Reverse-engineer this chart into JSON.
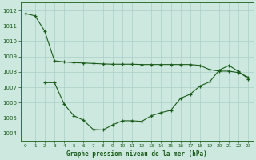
{
  "background_color": "#cce8df",
  "grid_color": "#aacfc7",
  "line_color": "#1a5c1a",
  "title": "Graphe pression niveau de la mer (hPa)",
  "ylim": [
    1003.5,
    1012.5
  ],
  "yticks": [
    1004,
    1005,
    1006,
    1007,
    1008,
    1009,
    1010,
    1011,
    1012
  ],
  "series_A_x": [
    0,
    1,
    2,
    3,
    4,
    5,
    6,
    7,
    8,
    9,
    10,
    11,
    12,
    13,
    14,
    15,
    16,
    17,
    18,
    19,
    20,
    21,
    22,
    23
  ],
  "series_A_y": [
    1011.8,
    1011.65,
    1010.65,
    1008.72,
    1008.65,
    1008.6,
    1008.58,
    1008.55,
    1008.52,
    1008.5,
    1008.5,
    1008.5,
    1008.48,
    1008.48,
    1008.48,
    1008.48,
    1008.48,
    1008.48,
    1008.42,
    1008.15,
    1008.05,
    1008.05,
    1007.95,
    1007.65
  ],
  "series_B_x": [
    2,
    3,
    4,
    5,
    6,
    7,
    8,
    9,
    10,
    11,
    12,
    13,
    14,
    15,
    16,
    17,
    18,
    19,
    20,
    21,
    22,
    23
  ],
  "series_B_y": [
    1007.3,
    1007.3,
    1005.9,
    1005.15,
    1004.85,
    1004.25,
    1004.22,
    1004.55,
    1004.82,
    1004.82,
    1004.78,
    1005.15,
    1005.35,
    1005.5,
    1006.28,
    1006.55,
    1007.08,
    1007.35,
    1008.12,
    1008.42,
    1008.02,
    1007.55
  ]
}
